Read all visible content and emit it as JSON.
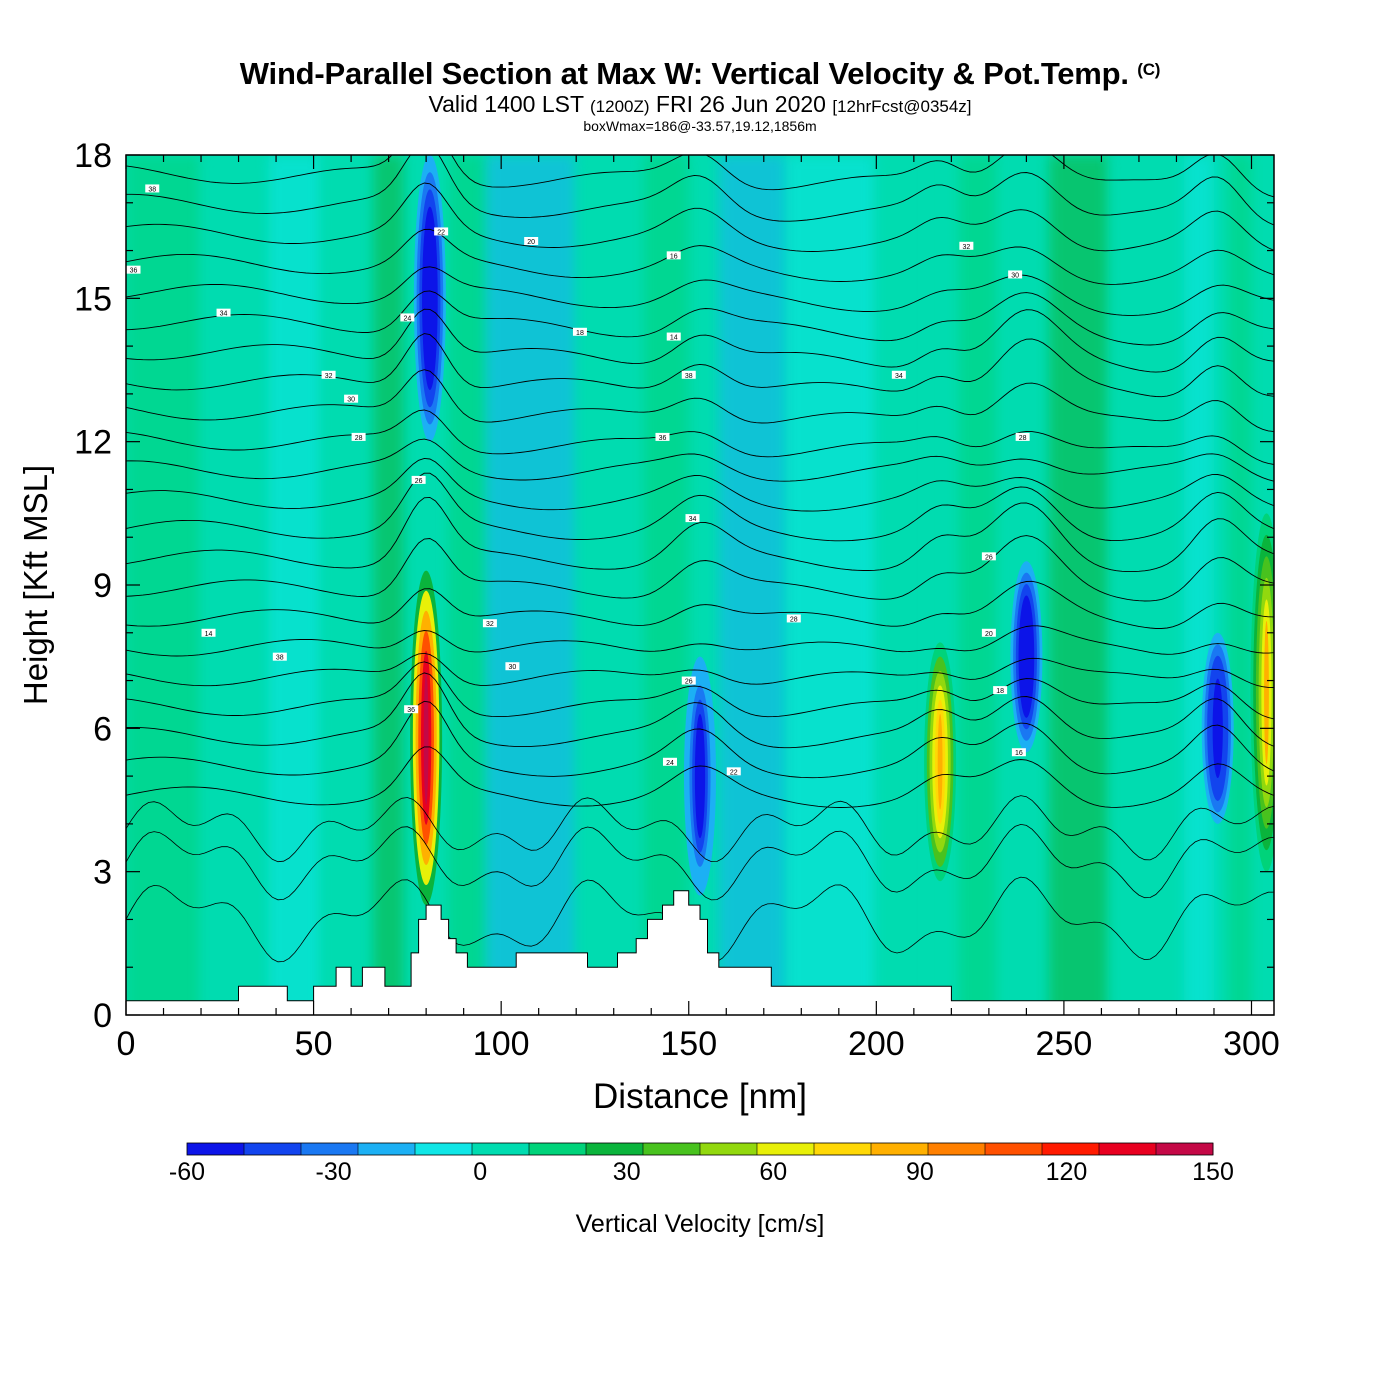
{
  "title": {
    "main": "Wind-Parallel Section at Max W: Vertical Velocity & Pot.Temp.",
    "copyright": "(C)",
    "valid_prefix": "Valid 1400 LST",
    "valid_zulu": "(1200Z)",
    "valid_date": "FRI 26 Jun 2020",
    "forecast": "[12hrFcst@0354z]",
    "boxinfo": "boxWmax=186@-33.57,19.12,1856m"
  },
  "chart_data": {
    "type": "heatmap",
    "xlabel": "Distance [nm]",
    "ylabel": "Height [Kft MSL]",
    "xlim": [
      0,
      306
    ],
    "ylim": [
      0,
      18
    ],
    "x_ticks": [
      "0",
      "50",
      "100",
      "150",
      "200",
      "250",
      "300"
    ],
    "y_ticks": [
      "0",
      "3",
      "6",
      "9",
      "12",
      "15",
      "18"
    ],
    "colorbar": {
      "label": "Vertical Velocity [cm/s]",
      "min": -60,
      "max": 150,
      "tick_labels": [
        "-60",
        "-30",
        "0",
        "30",
        "60",
        "90",
        "120",
        "150"
      ],
      "colors": [
        "#0c14e8",
        "#1244ee",
        "#1a78f2",
        "#1cb0f4",
        "#10e6e6",
        "#00dcb0",
        "#00d37a",
        "#0ab43c",
        "#48c21e",
        "#92d80e",
        "#e8f008",
        "#ffd806",
        "#ffb000",
        "#ff8000",
        "#ff5000",
        "#ff1a00",
        "#e80020",
        "#c40846"
      ]
    },
    "terrain_height_kft": [
      [
        0,
        0.3
      ],
      [
        30,
        0.3
      ],
      [
        30,
        0.6
      ],
      [
        43,
        0.6
      ],
      [
        43,
        0.3
      ],
      [
        50,
        0.3
      ],
      [
        50,
        0.6
      ],
      [
        56,
        0.6
      ],
      [
        56,
        1.0
      ],
      [
        60,
        1.0
      ],
      [
        60,
        0.6
      ],
      [
        63,
        0.6
      ],
      [
        63,
        1.0
      ],
      [
        69,
        1.0
      ],
      [
        69,
        0.6
      ],
      [
        76,
        0.6
      ],
      [
        76,
        1.3
      ],
      [
        78,
        1.3
      ],
      [
        78,
        2.0
      ],
      [
        80,
        2.0
      ],
      [
        80,
        2.3
      ],
      [
        84,
        2.3
      ],
      [
        84,
        2.0
      ],
      [
        86,
        2.0
      ],
      [
        86,
        1.6
      ],
      [
        88,
        1.6
      ],
      [
        88,
        1.3
      ],
      [
        91,
        1.3
      ],
      [
        91,
        1.0
      ],
      [
        104,
        1.0
      ],
      [
        104,
        1.3
      ],
      [
        123,
        1.3
      ],
      [
        123,
        1.0
      ],
      [
        131,
        1.0
      ],
      [
        131,
        1.3
      ],
      [
        136,
        1.3
      ],
      [
        136,
        1.6
      ],
      [
        139,
        1.6
      ],
      [
        139,
        2.0
      ],
      [
        143,
        2.0
      ],
      [
        143,
        2.3
      ],
      [
        146,
        2.3
      ],
      [
        146,
        2.6
      ],
      [
        150,
        2.6
      ],
      [
        150,
        2.3
      ],
      [
        153,
        2.3
      ],
      [
        153,
        2.0
      ],
      [
        155,
        2.0
      ],
      [
        155,
        1.3
      ],
      [
        158,
        1.3
      ],
      [
        158,
        1.0
      ],
      [
        172,
        1.0
      ],
      [
        172,
        0.6
      ],
      [
        220,
        0.6
      ],
      [
        220,
        0.3
      ],
      [
        306,
        0.3
      ]
    ],
    "updraft_cores": [
      {
        "x": 80,
        "bottom_kft": 2.3,
        "top_kft": 9.3,
        "max_cms": 150
      },
      {
        "x": 217,
        "bottom_kft": 2.8,
        "top_kft": 7.8,
        "max_cms": 90
      },
      {
        "x": 304,
        "bottom_kft": 3.0,
        "top_kft": 10.5,
        "max_cms": 80
      }
    ],
    "downdraft_cores": [
      {
        "x": 81,
        "bottom_kft": 12,
        "top_kft": 18,
        "min_cms": -60
      },
      {
        "x": 153,
        "bottom_kft": 2.5,
        "top_kft": 7.5,
        "min_cms": -50
      },
      {
        "x": 240,
        "bottom_kft": 5.5,
        "top_kft": 9.5,
        "min_cms": -60
      },
      {
        "x": 291,
        "bottom_kft": 4.0,
        "top_kft": 8.0,
        "min_cms": -55
      }
    ],
    "contour_field": "Potential temperature (theta) isentropes",
    "contour_labels": [
      "38",
      "36",
      "34",
      "32",
      "30",
      "28",
      "26",
      "24",
      "22",
      "20",
      "18",
      "16",
      "14"
    ]
  }
}
